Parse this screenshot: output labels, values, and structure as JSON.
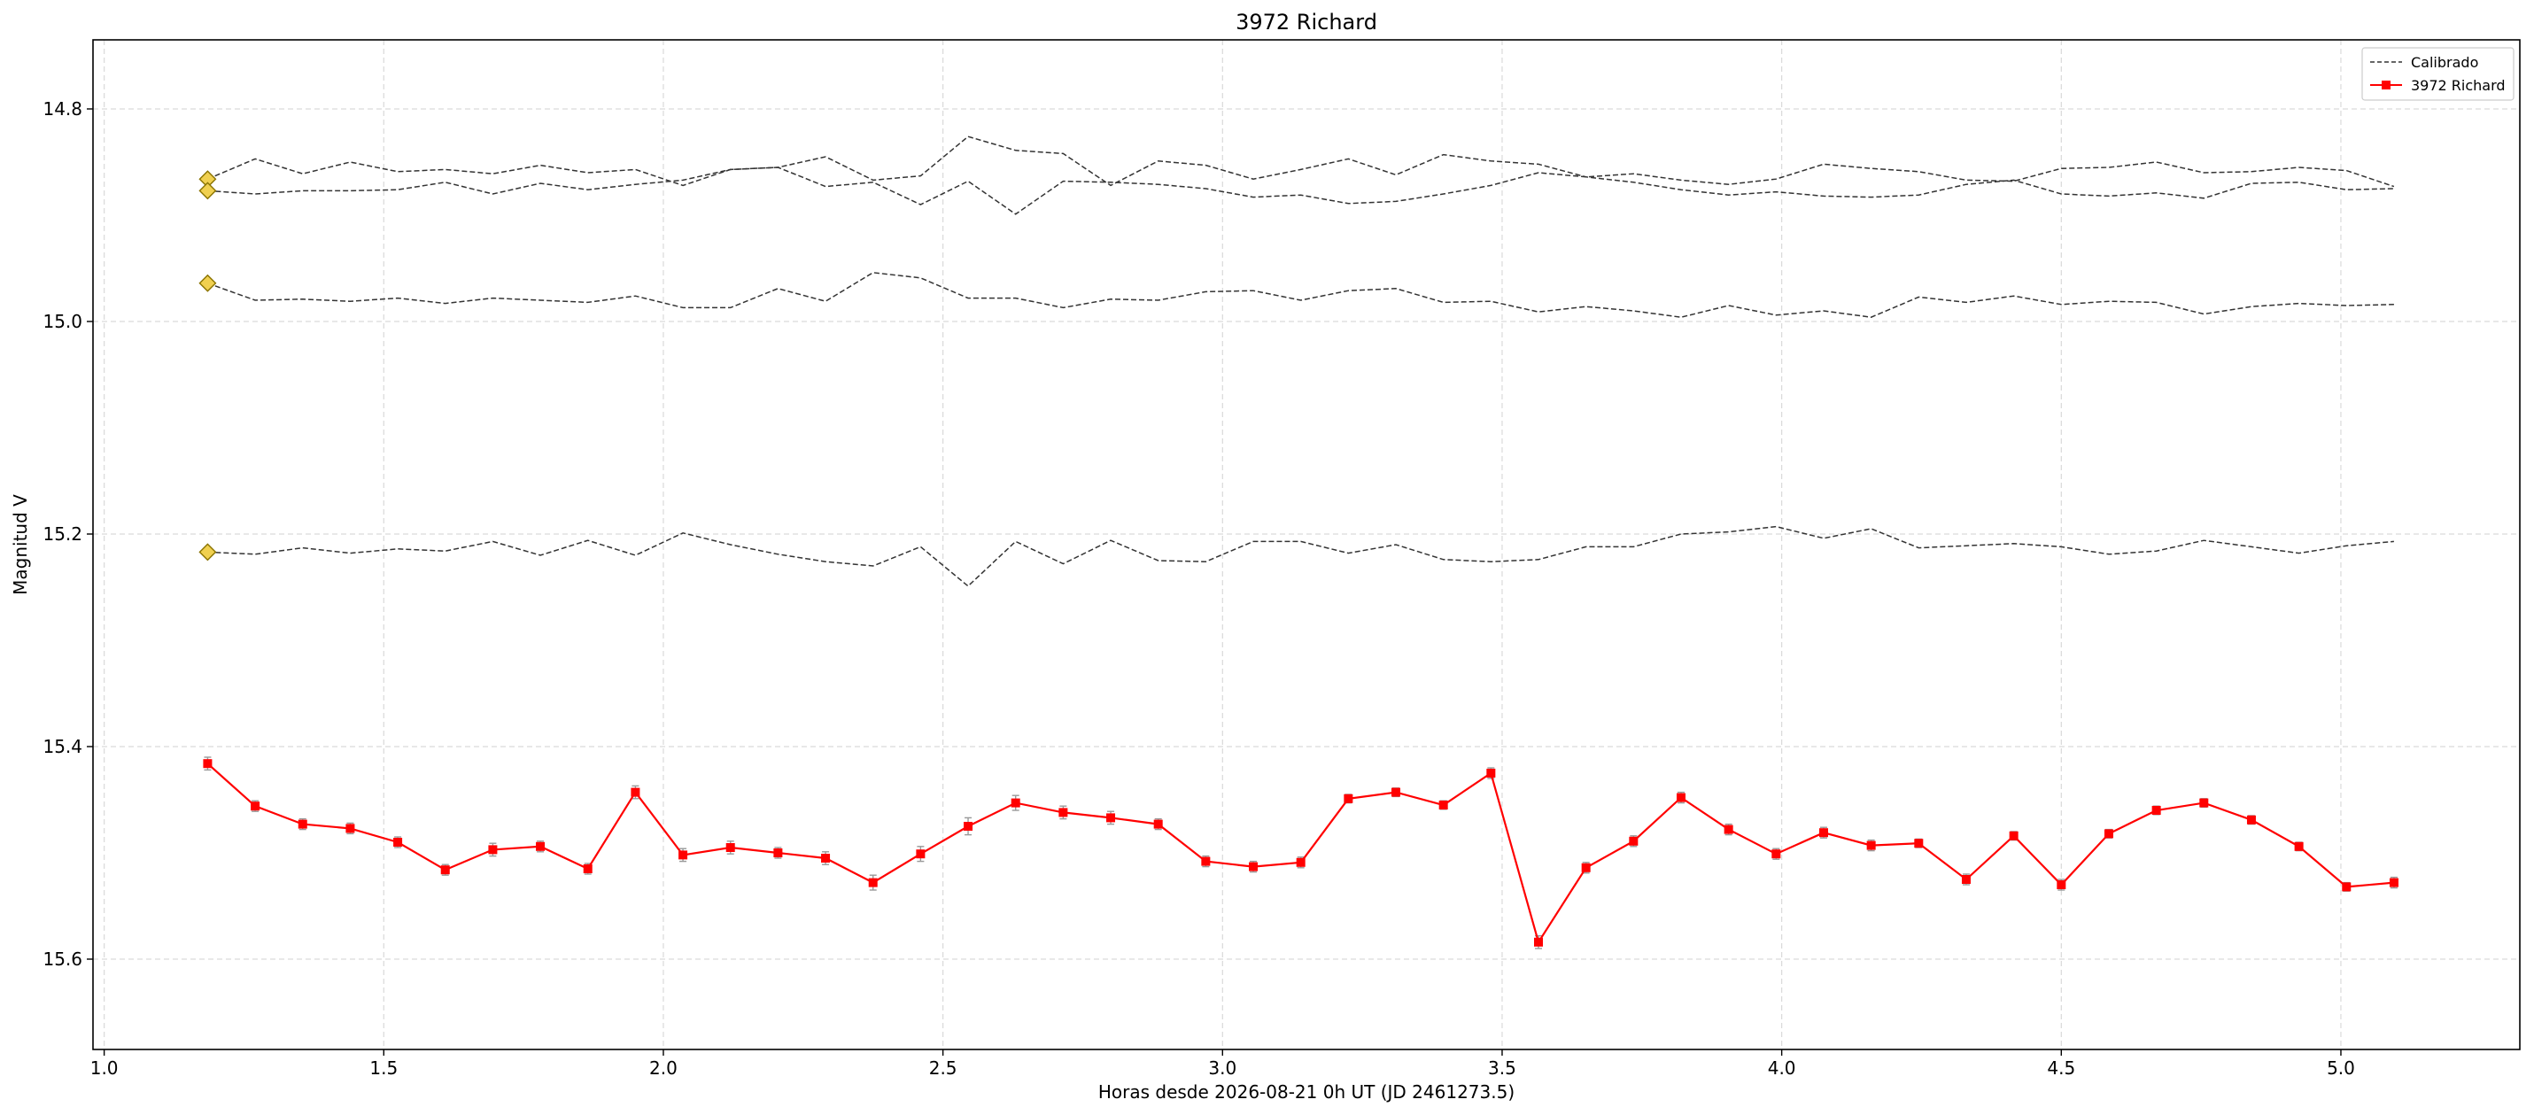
{
  "chart_data": {
    "type": "line",
    "title": "3972 Richard",
    "xlabel": "Horas desde 2026-08-21 0h UT (JD 2461273.5)",
    "ylabel": "Magnitud V",
    "xlim": [
      0.98,
      5.32
    ],
    "ylim": [
      15.685,
      14.735
    ],
    "y_inverted": true,
    "grid": true,
    "legend_position": "top-right",
    "xticks": [
      "1.0",
      "1.5",
      "2.0",
      "2.5",
      "3.0",
      "3.5",
      "4.0",
      "4.5",
      "5.0"
    ],
    "yticks": [
      "14.8",
      "15.0",
      "15.2",
      "15.4",
      "15.6"
    ],
    "x": [
      1.185,
      1.27,
      1.355,
      1.44,
      1.525,
      1.61,
      1.695,
      1.78,
      1.865,
      1.95,
      2.035,
      2.12,
      2.205,
      2.29,
      2.375,
      2.46,
      2.545,
      2.63,
      2.715,
      2.8,
      2.885,
      2.97,
      3.055,
      3.14,
      3.225,
      3.31,
      3.395,
      3.48,
      3.565,
      3.65,
      3.735,
      3.82,
      3.905,
      3.99,
      4.075,
      4.16,
      4.245,
      4.33,
      4.415,
      4.5,
      4.585,
      4.67,
      4.755,
      4.84,
      4.925,
      5.01,
      5.095
    ],
    "series": [
      {
        "name": "Calibrado",
        "role": "comparison-1",
        "style": "dashed",
        "color": "#333333",
        "values": [
          14.866,
          14.847,
          14.861,
          14.85,
          14.859,
          14.857,
          14.861,
          14.853,
          14.86,
          14.857,
          14.872,
          14.857,
          14.855,
          14.845,
          14.867,
          14.863,
          14.826,
          14.839,
          14.842,
          14.872,
          14.849,
          14.853,
          14.866,
          14.857,
          14.847,
          14.862,
          14.843,
          14.849,
          14.852,
          14.864,
          14.869,
          14.876,
          14.881,
          14.878,
          14.882,
          14.883,
          14.881,
          14.871,
          14.867,
          14.88,
          14.882,
          14.879,
          14.884,
          14.87,
          14.869,
          14.876,
          14.875
        ]
      },
      {
        "role": "comparison-2",
        "style": "dashed",
        "color": "#333333",
        "values": [
          14.877,
          14.88,
          14.877,
          14.877,
          14.876,
          14.869,
          14.88,
          14.87,
          14.876,
          14.871,
          14.867,
          14.857,
          14.855,
          14.873,
          14.869,
          14.89,
          14.868,
          14.899,
          14.868,
          14.869,
          14.871,
          14.875,
          14.883,
          14.881,
          14.889,
          14.887,
          14.88,
          14.872,
          14.86,
          14.864,
          14.861,
          14.867,
          14.871,
          14.866,
          14.852,
          14.856,
          14.859,
          14.867,
          14.868,
          14.856,
          14.855,
          14.85,
          14.86,
          14.859,
          14.855,
          14.858,
          14.873
        ]
      },
      {
        "role": "comparison-3",
        "style": "dashed",
        "color": "#333333",
        "values": [
          14.964,
          14.98,
          14.979,
          14.981,
          14.978,
          14.983,
          14.978,
          14.98,
          14.982,
          14.976,
          14.987,
          14.987,
          14.969,
          14.981,
          14.954,
          14.959,
          14.978,
          14.978,
          14.987,
          14.979,
          14.98,
          14.972,
          14.971,
          14.98,
          14.971,
          14.969,
          14.982,
          14.981,
          14.991,
          14.986,
          14.99,
          14.996,
          14.985,
          14.994,
          14.99,
          14.996,
          14.977,
          14.982,
          14.976,
          14.984,
          14.981,
          14.982,
          14.993,
          14.986,
          14.983,
          14.985,
          14.984
        ]
      },
      {
        "role": "comparison-4",
        "style": "dashed",
        "color": "#333333",
        "values": [
          15.217,
          15.219,
          15.213,
          15.218,
          15.214,
          15.216,
          15.207,
          15.22,
          15.206,
          15.22,
          15.199,
          15.21,
          15.219,
          15.226,
          15.23,
          15.212,
          15.249,
          15.207,
          15.228,
          15.206,
          15.225,
          15.226,
          15.207,
          15.207,
          15.218,
          15.21,
          15.224,
          15.226,
          15.224,
          15.212,
          15.212,
          15.2,
          15.198,
          15.193,
          15.204,
          15.195,
          15.213,
          15.211,
          15.209,
          15.212,
          15.219,
          15.216,
          15.206,
          15.212,
          15.218,
          15.211,
          15.207
        ]
      },
      {
        "name": "3972 Richard",
        "role": "target",
        "style": "solid-square-markers",
        "color": "#ff0000",
        "values": [
          15.416,
          15.456,
          15.473,
          15.477,
          15.49,
          15.516,
          15.497,
          15.494,
          15.515,
          15.443,
          15.502,
          15.495,
          15.5,
          15.505,
          15.528,
          15.501,
          15.475,
          15.453,
          15.462,
          15.467,
          15.473,
          15.508,
          15.513,
          15.509,
          15.449,
          15.443,
          15.455,
          15.425,
          15.584,
          15.514,
          15.489,
          15.448,
          15.478,
          15.501,
          15.481,
          15.493,
          15.491,
          15.525,
          15.484,
          15.53,
          15.482,
          15.46,
          15.453,
          15.469,
          15.494,
          15.532,
          15.528
        ],
        "errors": [
          0.006,
          0.005,
          0.005,
          0.005,
          0.005,
          0.005,
          0.006,
          0.005,
          0.005,
          0.006,
          0.006,
          0.006,
          0.005,
          0.006,
          0.007,
          0.007,
          0.008,
          0.007,
          0.006,
          0.006,
          0.005,
          0.005,
          0.005,
          0.005,
          0.004,
          0.004,
          0.004,
          0.005,
          0.006,
          0.005,
          0.005,
          0.005,
          0.005,
          0.005,
          0.005,
          0.005,
          0.004,
          0.005,
          0.004,
          0.005,
          0.004,
          0.004,
          0.004,
          0.004,
          0.004,
          0.004,
          0.005
        ]
      }
    ],
    "reference_markers": [
      {
        "x": 1.185,
        "y": 14.866
      },
      {
        "x": 1.185,
        "y": 14.877
      },
      {
        "x": 1.185,
        "y": 14.964
      },
      {
        "x": 1.185,
        "y": 15.217
      }
    ],
    "colors": {
      "target": "#ff0000",
      "comparison": "#333333",
      "marker_fill": "#f0d050",
      "marker_edge": "#8a7300",
      "grid": "#d9d9d9"
    }
  }
}
